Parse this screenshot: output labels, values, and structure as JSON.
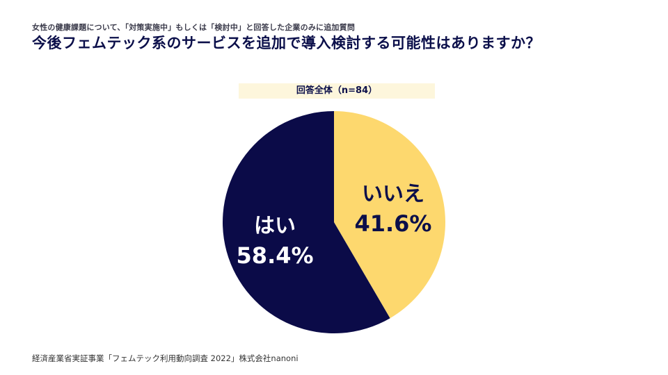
{
  "header": {
    "subtitle": "女性の健康課題について、「対策実施中」もしくは「検討中」と回答した企業のみに追加質問",
    "title": "今後フェムテック系のサービスを追加で導入検討する可能性はありますか？"
  },
  "chart_data": {
    "type": "pie",
    "title": "回答全体（n=84）",
    "slices": [
      {
        "label": "いいえ",
        "value": 41.6,
        "value_label": "41.6%",
        "color": "#fdd86e",
        "label_color": "#0b0f4a"
      },
      {
        "label": "はい",
        "value": 58.4,
        "value_label": "58.4%",
        "color": "#0b0b48",
        "label_color": "#ffffff"
      }
    ],
    "start_angle": "12 o'clock",
    "direction": "clockwise",
    "legend": "none"
  },
  "footer": {
    "source": "経済産業省実証事業「フェムテック利用動向調査 2022」株式会社nanoni"
  }
}
